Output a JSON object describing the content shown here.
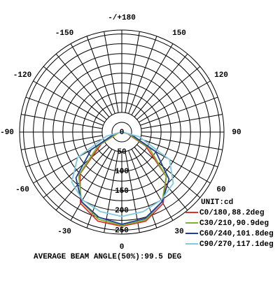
{
  "chart_data": {
    "type": "polar",
    "unit_label": "UNIT:cd",
    "footer": "AVERAGE BEAM ANGLE(50%):99.5 DEG",
    "x": [
      -90,
      -75,
      -60,
      -45,
      -30,
      -15,
      0,
      15,
      30,
      45,
      60,
      75,
      90
    ],
    "series": [
      {
        "name": "C0/180,88.2deg",
        "color": "#d9342b",
        "values": [
          0,
          10,
          60,
          150,
          210,
          235,
          240,
          235,
          210,
          160,
          70,
          15,
          0
        ]
      },
      {
        "name": "C30/210,90.9deg",
        "color": "#7cb32b",
        "values": [
          0,
          12,
          70,
          155,
          205,
          230,
          238,
          232,
          205,
          160,
          80,
          18,
          0
        ]
      },
      {
        "name": "C60/240,101.8deg",
        "color": "#1f3f99",
        "values": [
          0,
          20,
          90,
          165,
          205,
          225,
          235,
          228,
          205,
          170,
          100,
          25,
          0
        ]
      },
      {
        "name": "C90/270,117.1deg",
        "color": "#7fc8e0",
        "values": [
          0,
          40,
          130,
          180,
          200,
          210,
          215,
          210,
          200,
          185,
          140,
          45,
          0
        ]
      }
    ],
    "rlim": [
      0,
      260
    ],
    "rticks": [
      0,
      50,
      100,
      150,
      200,
      250
    ],
    "angle_ticks": [
      {
        "value": 180,
        "label": "-/+180"
      },
      150,
      120,
      90,
      60,
      30,
      0,
      -30,
      -60,
      -90,
      -120,
      -150
    ]
  }
}
